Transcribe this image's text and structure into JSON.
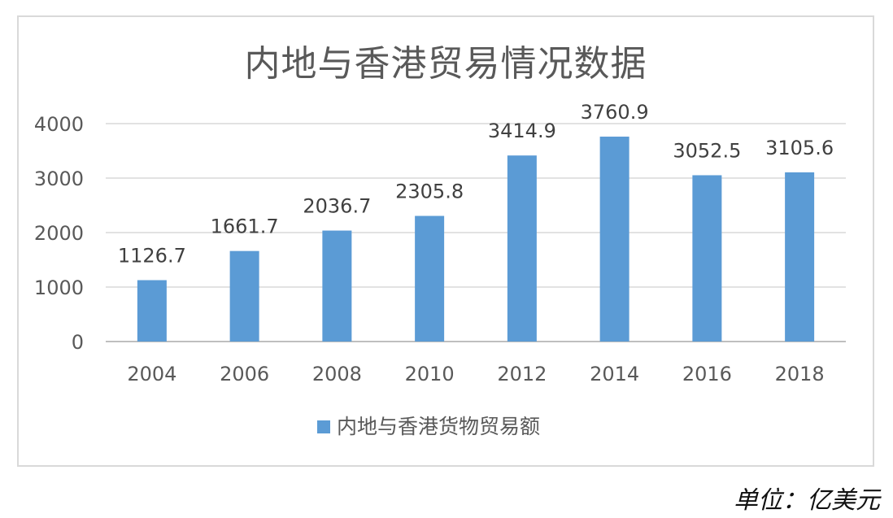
{
  "chart_data": {
    "type": "bar",
    "title": "内地与香港贸易情况数据",
    "categories": [
      "2004",
      "2006",
      "2008",
      "2010",
      "2012",
      "2014",
      "2016",
      "2018"
    ],
    "series": [
      {
        "name": "内地与香港货物贸易额",
        "values": [
          1126.7,
          1661.7,
          2036.7,
          2305.8,
          3414.9,
          3760.9,
          3052.5,
          3105.6
        ],
        "labels": [
          "1126.7",
          "1661.7",
          "2036.7",
          "2305.8",
          "3414.9",
          "3760.9",
          "3052.5",
          "3105.6"
        ],
        "color": "#5b9bd5"
      }
    ],
    "yticks": [
      "0",
      "1000",
      "2000",
      "3000",
      "4000"
    ],
    "ylim": [
      0,
      4000
    ],
    "grid": true,
    "legend": "bottom",
    "xlabel": "",
    "ylabel": ""
  },
  "unit_note": "单位：亿美元"
}
